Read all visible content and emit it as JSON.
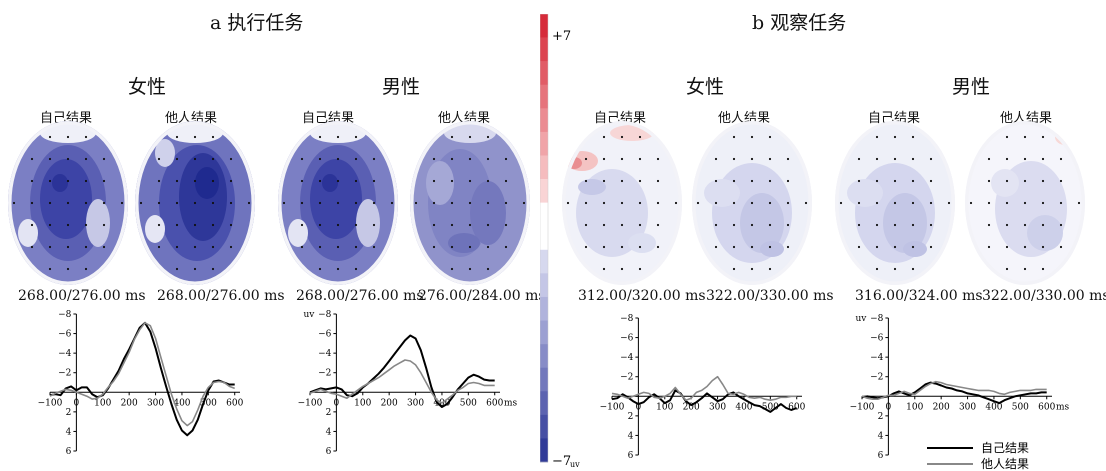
{
  "figure": {
    "panels": [
      {
        "title": "a 执行任务",
        "groups": [
          {
            "gender": "女性",
            "maps": [
              {
                "condition": "自己结果",
                "time_label": "268.00/276.00 ms",
                "variant": "strong-blue"
              },
              {
                "condition": "他人结果",
                "time_label": "268.00/276.00 ms",
                "variant": "strongest-blue"
              }
            ],
            "erp": {
              "y_unit": "",
              "y_ticks": [
                "−8",
                "−6",
                "−4",
                "−2",
                "0",
                "2",
                "4",
                "6"
              ],
              "x_ticks": [
                "−100",
                "0",
                "100",
                "200",
                "300",
                "400",
                "500",
                "600"
              ],
              "x_unit": ""
            }
          },
          {
            "gender": "男性",
            "maps": [
              {
                "condition": "自己结果",
                "time_label": "268.00/276.00 ms",
                "variant": "strong-blue"
              },
              {
                "condition": "他人结果",
                "time_label": "276.00/284.00 ms",
                "variant": "medium-blue"
              }
            ],
            "erp": {
              "y_unit": "uv",
              "y_ticks": [
                "−8",
                "−6",
                "−4",
                "−2",
                "0",
                "2",
                "4",
                "6"
              ],
              "x_ticks": [
                "−100",
                "0",
                "100",
                "200",
                "300",
                "400",
                "500",
                "600"
              ],
              "x_unit": "ms"
            }
          }
        ]
      },
      {
        "title": "b 观察任务",
        "groups": [
          {
            "gender": "女性",
            "maps": [
              {
                "condition": "自己结果",
                "time_label": "312.00/320.00 ms",
                "variant": "light-red"
              },
              {
                "condition": "他人结果",
                "time_label": "322.00/330.00 ms",
                "variant": "light-blue"
              }
            ],
            "erp": {
              "y_unit": "",
              "y_ticks": [
                "−8",
                "−6",
                "−4",
                "−2",
                "0",
                "2",
                "4",
                "6"
              ],
              "x_ticks": [
                "−100",
                "0",
                "100",
                "200",
                "300",
                "400",
                "500",
                "600"
              ],
              "x_unit": ""
            }
          },
          {
            "gender": "男性",
            "maps": [
              {
                "condition": "自己结果",
                "time_label": "316.00/324.00 ms",
                "variant": "light-blue"
              },
              {
                "condition": "他人结果",
                "time_label": "322.00/330.00 ms",
                "variant": "light-red-edge"
              }
            ],
            "erp": {
              "y_unit": "uv",
              "y_ticks": [
                "−8",
                "−6",
                "−4",
                "−2",
                "0",
                "2",
                "4",
                "6"
              ],
              "x_ticks": [
                "−100",
                "0",
                "100",
                "200",
                "300",
                "400",
                "500",
                "600"
              ],
              "x_unit": "ms"
            }
          }
        ]
      }
    ],
    "colorbar": {
      "max_label": "+7",
      "min_label": "−7",
      "min_unit": "uv",
      "colors_top_to_bottom": [
        "#d62b3a",
        "#dc4450",
        "#e15c66",
        "#e6747c",
        "#eb8c92",
        "#f0a4a8",
        "#f5bcbe",
        "#f9d4d5",
        "#ffffff",
        "#ffffff",
        "#d6d8ee",
        "#c4c6e6",
        "#b0b3dc",
        "#9ca0d2",
        "#878cc7",
        "#7278bc",
        "#5c63b0",
        "#464fa4",
        "#303b98"
      ]
    },
    "legend": {
      "items": [
        {
          "label": "自己结果",
          "color": "#000000"
        },
        {
          "label": "他人结果",
          "color": "#888888"
        }
      ]
    }
  },
  "chart_data": [
    {
      "type": "line",
      "x": [
        -100,
        -80,
        -60,
        -40,
        -20,
        0,
        20,
        40,
        60,
        80,
        100,
        120,
        140,
        160,
        180,
        200,
        220,
        240,
        260,
        280,
        300,
        320,
        340,
        360,
        380,
        400,
        420,
        440,
        460,
        480,
        500,
        520,
        540,
        560,
        580,
        600
      ],
      "series": [
        {
          "name": "自己结果",
          "values": [
            0.3,
            0.2,
            0.3,
            -0.4,
            -0.6,
            -0.2,
            -0.5,
            -0.5,
            0.2,
            0.5,
            0.3,
            -0.4,
            -1.3,
            -2.2,
            -3.4,
            -4.4,
            -5.5,
            -6.6,
            -7.1,
            -6.2,
            -4.5,
            -2.5,
            -0.6,
            1.2,
            2.8,
            3.9,
            4.4,
            3.9,
            2.8,
            1.2,
            -0.2,
            -1.1,
            -1.2,
            -1.0,
            -0.8,
            -0.8
          ]
        },
        {
          "name": "他人结果",
          "values": [
            0.4,
            0.1,
            -0.1,
            -0.3,
            -0.2,
            0.0,
            0.2,
            0.4,
            0.7,
            0.6,
            0.2,
            -0.5,
            -1.1,
            -1.9,
            -3.0,
            -4.1,
            -5.4,
            -6.4,
            -7.1,
            -6.8,
            -5.5,
            -3.6,
            -1.7,
            0.2,
            1.7,
            2.9,
            3.4,
            3.0,
            1.8,
            0.4,
            -0.5,
            -1.0,
            -1.1,
            -1.0,
            -0.6,
            -0.4
          ]
        }
      ],
      "ylim": [
        6,
        -8
      ],
      "xlim": [
        -100,
        620
      ]
    },
    {
      "type": "line",
      "x": [
        -100,
        -80,
        -60,
        -40,
        -20,
        0,
        20,
        40,
        60,
        80,
        100,
        120,
        140,
        160,
        180,
        200,
        220,
        240,
        260,
        280,
        300,
        320,
        340,
        360,
        380,
        400,
        420,
        440,
        460,
        480,
        500,
        520,
        540,
        560,
        580,
        600
      ],
      "series": [
        {
          "name": "自己结果",
          "values": [
            0.0,
            -0.2,
            -0.4,
            -0.3,
            -0.4,
            -0.5,
            -0.3,
            0.3,
            0.4,
            0.1,
            -0.5,
            -0.9,
            -1.4,
            -1.9,
            -2.5,
            -3.2,
            -3.9,
            -4.6,
            -5.3,
            -5.8,
            -5.5,
            -4.3,
            -2.5,
            -0.5,
            1.0,
            1.5,
            1.2,
            0.5,
            -0.3,
            -0.9,
            -1.5,
            -1.8,
            -1.6,
            -1.3,
            -1.2,
            -1.2
          ]
        },
        {
          "name": "他人结果",
          "values": [
            0.1,
            -0.1,
            -0.3,
            -0.1,
            0.1,
            0.2,
            0.4,
            0.6,
            0.2,
            -0.2,
            -0.6,
            -0.9,
            -1.2,
            -1.5,
            -1.9,
            -2.3,
            -2.7,
            -3.0,
            -3.3,
            -3.2,
            -2.8,
            -2.0,
            -1.0,
            0.0,
            0.8,
            1.1,
            0.7,
            0.3,
            -0.2,
            -0.5,
            -0.9,
            -1.0,
            -0.9,
            -0.7,
            -0.7,
            -0.7
          ]
        }
      ],
      "ylim": [
        6,
        -8
      ],
      "xlim": [
        -100,
        620
      ]
    },
    {
      "type": "line",
      "x": [
        -100,
        -80,
        -60,
        -40,
        -20,
        0,
        20,
        40,
        60,
        80,
        100,
        120,
        140,
        160,
        180,
        200,
        220,
        240,
        260,
        280,
        300,
        320,
        340,
        360,
        380,
        400,
        420,
        440,
        460,
        480,
        500,
        520,
        540,
        560,
        580,
        600
      ],
      "series": [
        {
          "name": "自己结果",
          "values": [
            0.3,
            0.2,
            -0.2,
            0.1,
            0.5,
            0.8,
            0.6,
            0.1,
            -0.2,
            0.2,
            0.7,
            0.4,
            -0.6,
            -0.3,
            0.5,
            0.9,
            0.6,
            0.2,
            -0.3,
            0.1,
            0.5,
            0.3,
            -0.2,
            -0.4,
            0.0,
            0.3,
            0.6,
            0.9,
            1.0,
            1.3,
            1.6,
            1.2,
            0.8,
            1.2,
            1.4,
            1.2
          ]
        },
        {
          "name": "他人结果",
          "values": [
            -0.3,
            -0.2,
            0.0,
            0.2,
            0.0,
            -0.2,
            -0.4,
            -0.3,
            0.1,
            0.2,
            0.0,
            -0.3,
            -0.9,
            -0.2,
            0.4,
            0.2,
            -0.4,
            -0.6,
            -1.0,
            -1.6,
            -2.0,
            -1.2,
            -0.3,
            -0.2,
            -0.4,
            -0.2,
            0.1,
            0.2,
            0.1,
            0.3,
            0.4,
            0.3,
            0.1,
            0.1,
            0.0,
            0.0
          ]
        }
      ],
      "ylim": [
        6,
        -8
      ],
      "xlim": [
        -100,
        620
      ]
    },
    {
      "type": "line",
      "x": [
        -100,
        -80,
        -60,
        -40,
        -20,
        0,
        20,
        40,
        60,
        80,
        100,
        120,
        140,
        160,
        180,
        200,
        220,
        240,
        260,
        280,
        300,
        320,
        340,
        360,
        380,
        400,
        420,
        440,
        460,
        480,
        500,
        520,
        540,
        560,
        580,
        600
      ],
      "series": [
        {
          "name": "自己结果",
          "values": [
            0.1,
            0.0,
            0.1,
            0.2,
            0.1,
            0.0,
            -0.3,
            -0.5,
            -0.3,
            -0.1,
            -0.4,
            -0.8,
            -1.2,
            -1.4,
            -1.3,
            -1.1,
            -0.9,
            -0.8,
            -0.6,
            -0.5,
            -0.3,
            -0.2,
            -0.1,
            0.1,
            0.3,
            0.5,
            0.7,
            0.4,
            0.2,
            0.0,
            -0.1,
            -0.2,
            -0.3,
            -0.3,
            -0.4,
            -0.4
          ]
        },
        {
          "name": "他人结果",
          "values": [
            0.0,
            0.2,
            0.3,
            0.3,
            0.1,
            -0.1,
            -0.1,
            -0.3,
            -0.5,
            -0.3,
            -0.2,
            -0.6,
            -1.0,
            -1.3,
            -1.5,
            -1.4,
            -1.2,
            -1.1,
            -1.0,
            -0.9,
            -0.8,
            -0.7,
            -0.6,
            -0.6,
            -0.6,
            -0.5,
            -0.3,
            -0.2,
            -0.4,
            -0.5,
            -0.6,
            -0.6,
            -0.6,
            -0.7,
            -0.7,
            -0.7
          ]
        }
      ],
      "ylim": [
        6,
        -8
      ],
      "xlim": [
        -100,
        620
      ]
    }
  ]
}
